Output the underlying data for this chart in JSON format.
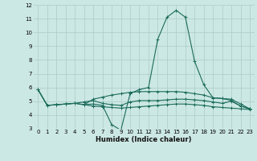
{
  "title": "",
  "xlabel": "Humidex (Indice chaleur)",
  "bg_color": "#cce8e4",
  "grid_color": "#b0d0cc",
  "line_color": "#1a6b5a",
  "xlim": [
    -0.5,
    23.5
  ],
  "ylim": [
    3,
    12
  ],
  "xticks": [
    0,
    1,
    2,
    3,
    4,
    5,
    6,
    7,
    8,
    9,
    10,
    11,
    12,
    13,
    14,
    15,
    16,
    17,
    18,
    19,
    20,
    21,
    22,
    23
  ],
  "yticks": [
    3,
    4,
    5,
    6,
    7,
    8,
    9,
    10,
    11,
    12
  ],
  "curves": [
    {
      "x": [
        0,
        1,
        2,
        3,
        4,
        5,
        6,
        7,
        8,
        9,
        10,
        11,
        12,
        13,
        14,
        15,
        16,
        17,
        18,
        19,
        20,
        21,
        22,
        23
      ],
      "y": [
        5.85,
        4.7,
        4.75,
        4.8,
        4.85,
        4.75,
        4.8,
        4.7,
        3.3,
        2.9,
        5.55,
        5.85,
        6.0,
        9.5,
        11.1,
        11.6,
        11.1,
        7.9,
        6.2,
        5.25,
        5.2,
        5.05,
        4.65,
        4.45
      ]
    },
    {
      "x": [
        0,
        1,
        2,
        3,
        4,
        5,
        6,
        7,
        8,
        9,
        10,
        11,
        12,
        13,
        14,
        15,
        16,
        17,
        18,
        19,
        20,
        21,
        22,
        23
      ],
      "y": [
        5.85,
        4.7,
        4.75,
        4.8,
        4.85,
        4.95,
        5.05,
        4.85,
        4.75,
        4.7,
        4.95,
        5.05,
        5.05,
        5.05,
        5.1,
        5.15,
        5.15,
        5.1,
        5.05,
        4.95,
        4.85,
        5.0,
        4.65,
        4.45
      ]
    },
    {
      "x": [
        0,
        1,
        2,
        3,
        4,
        5,
        6,
        7,
        8,
        9,
        10,
        11,
        12,
        13,
        14,
        15,
        16,
        17,
        18,
        19,
        20,
        21,
        22,
        23
      ],
      "y": [
        5.85,
        4.7,
        4.75,
        4.8,
        4.85,
        4.75,
        4.65,
        4.6,
        4.55,
        4.5,
        4.55,
        4.6,
        4.65,
        4.7,
        4.75,
        4.8,
        4.8,
        4.75,
        4.7,
        4.6,
        4.55,
        4.5,
        4.45,
        4.4
      ]
    },
    {
      "x": [
        5,
        6,
        7,
        8,
        9,
        10,
        11,
        12,
        13,
        14,
        15,
        16,
        17,
        18,
        19,
        20,
        21,
        22,
        23
      ],
      "y": [
        4.75,
        5.15,
        5.3,
        5.45,
        5.55,
        5.65,
        5.7,
        5.7,
        5.7,
        5.7,
        5.7,
        5.65,
        5.55,
        5.45,
        5.25,
        5.2,
        5.15,
        4.8,
        4.45
      ]
    }
  ]
}
